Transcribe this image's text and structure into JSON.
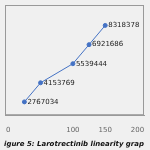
{
  "chart_data": {
    "type": "line",
    "caption": "igure 5: Larotrectinib linearity grap",
    "x": [
      25,
      50,
      100,
      125,
      150
    ],
    "values": [
      2767034,
      4153769,
      5539444,
      6921686,
      8318378
    ],
    "color": "#4472c4",
    "marker": "circle",
    "xlim": [
      -5,
      210
    ],
    "xticks": [
      0,
      100,
      150,
      200
    ],
    "ylim": [
      1800000,
      9800000
    ],
    "grid": false,
    "tick_labels": "x",
    "data_labels": true
  }
}
